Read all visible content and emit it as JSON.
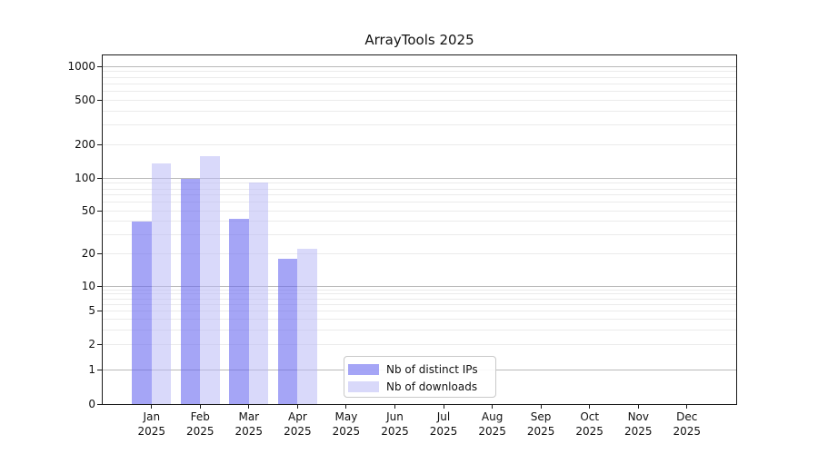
{
  "chart_data": {
    "type": "bar",
    "title": "ArrayTools 2025",
    "year_label": "2025",
    "categories": [
      "Jan",
      "Feb",
      "Mar",
      "Apr",
      "May",
      "Jun",
      "Jul",
      "Aug",
      "Sep",
      "Oct",
      "Nov",
      "Dec"
    ],
    "series": [
      {
        "name": "Nb of distinct IPs",
        "color": "rgba(100,100,240,0.58)",
        "values": [
          40,
          100,
          42,
          18,
          null,
          null,
          null,
          null,
          null,
          null,
          null,
          null
        ]
      },
      {
        "name": "Nb of downloads",
        "color": "rgba(185,185,245,0.55)",
        "values": [
          135,
          158,
          91,
          22,
          null,
          null,
          null,
          null,
          null,
          null,
          null,
          null
        ]
      }
    ],
    "yscale": "symlog",
    "yticks": [
      0,
      1,
      2,
      5,
      10,
      20,
      50,
      100,
      200,
      500,
      1000
    ],
    "ylim": [
      0,
      1250
    ],
    "xlabel": "",
    "ylabel": "",
    "grid": "horizontal major+minor",
    "legend_position": "lower center"
  }
}
